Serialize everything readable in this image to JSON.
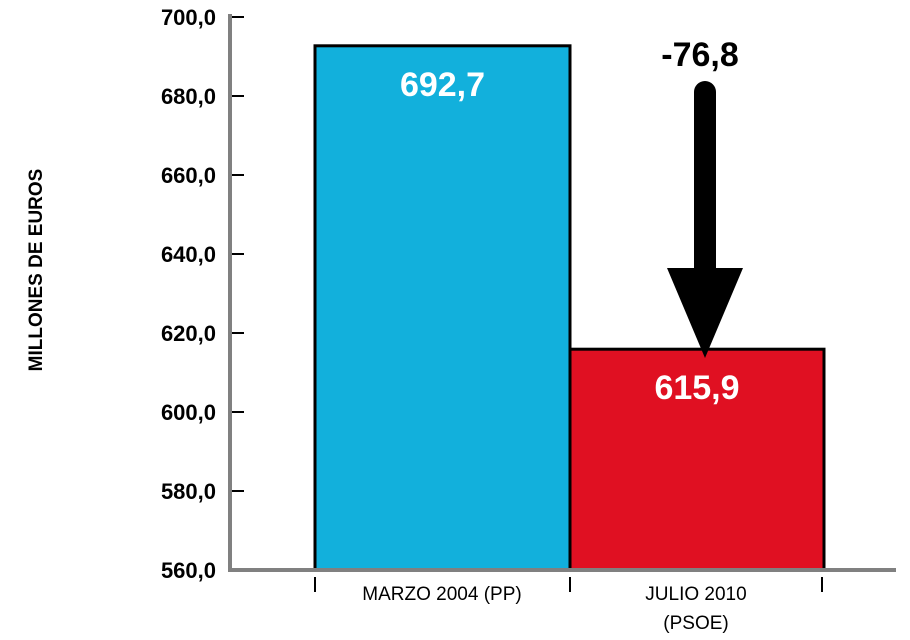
{
  "chart_data": {
    "type": "bar",
    "ylabel": "MILLONES DE EUROS",
    "ylim": [
      560,
      700
    ],
    "yticks": [
      "560,0",
      "580,0",
      "600,0",
      "620,0",
      "640,0",
      "660,0",
      "680,0",
      "700,0"
    ],
    "categories": [
      {
        "line1": "MARZO 2004 (PP)",
        "line2": ""
      },
      {
        "line1": "JULIO 2010",
        "line2": "(PSOE)"
      }
    ],
    "values": [
      692.7,
      615.9
    ],
    "value_labels": [
      "692,7",
      "615,9"
    ],
    "colors": [
      "#12b0dc",
      "#e01022"
    ],
    "annotation": {
      "label": "-76,8",
      "arrow": "down-arrow"
    },
    "grid": false
  }
}
